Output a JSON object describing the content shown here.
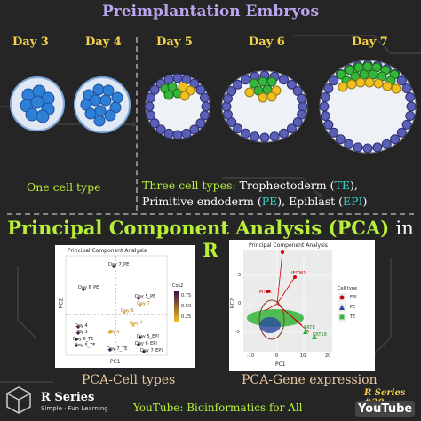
{
  "header": {
    "title": "Preimplantation Embryos"
  },
  "days": [
    "Day 3",
    "Day 4",
    "Day 5",
    "Day 6",
    "Day 7"
  ],
  "descriptions": {
    "one_cell": "One cell type",
    "three_label": "Three cell types:",
    "te_text": "Trophectoderm (",
    "te_abbr": "TE",
    "pe_text": "Primitive endoderm (",
    "pe_abbr": "PE",
    "epi_text": "), Epiblast (",
    "epi_abbr": "EPI",
    "close": ")",
    "close_comma": "),"
  },
  "pca": {
    "title_main": "Principal Component Analysis (PCA)",
    "title_in": "in",
    "title_r": "R"
  },
  "cell_plot": {
    "title": "Principal Component Analysis",
    "xlabel": "PC1",
    "ylabel": "PC2",
    "legend_title": "Cos2",
    "legend_ticks": [
      "0.75",
      "0.50",
      "0.25"
    ],
    "labels": [
      "Day 7_PE",
      "Day 6_PE",
      "Day 5_PE",
      "Day 7",
      "Day 6",
      "Day 7",
      "Day 4",
      "Day 3",
      "Day 6_TE",
      "Day 5_TE",
      "Day 7_TE",
      "Day 5_EPI",
      "Day 6_EPI",
      "Day 7_EPI",
      "Day 5"
    ]
  },
  "gene_plot": {
    "title": "Principal Component Analysis",
    "xlabel": "PC1",
    "ylabel": "PC2",
    "x_ticks": [
      "-10",
      "0",
      "10",
      "20"
    ],
    "y_ticks": [
      "5",
      "0",
      "-5"
    ],
    "legend_title": "Cell type",
    "legend": [
      "EPI",
      "PE",
      "TE"
    ],
    "gene_labels": [
      "IFITM1",
      "MT1X",
      "KRT8",
      "KRT18"
    ]
  },
  "captions": {
    "cells": "PCA-Cell types",
    "genes": "PCA-Gene expression"
  },
  "footer": {
    "series": "R Series",
    "tagline": "Simple · Fun Learning",
    "youtube_line": "YouTube: Bioinformatics for All",
    "series_num": "R Series #20",
    "logo": "YouTube"
  },
  "colors": {
    "accent": "#b8ef3a",
    "yellow": "#f3d24a",
    "purple": "#b9a6ee",
    "teal": "#33d4c8",
    "te": "#5a5fb8",
    "pe": "#f0c020",
    "epi": "#35b53a"
  }
}
